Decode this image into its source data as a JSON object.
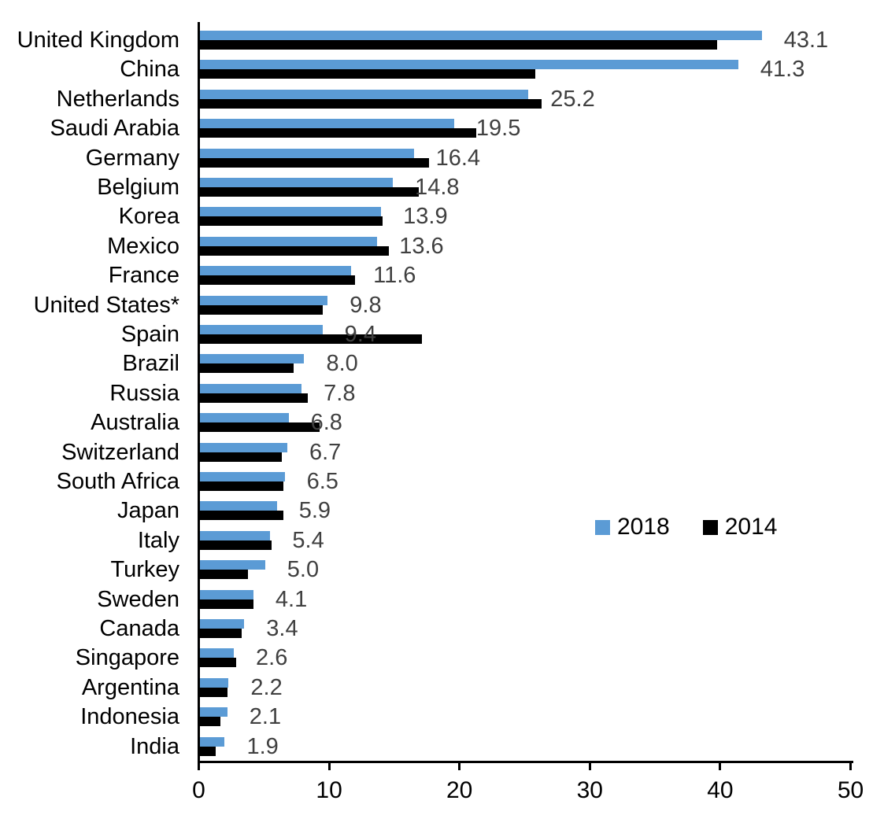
{
  "chart_data": {
    "type": "bar",
    "orientation": "horizontal",
    "title": "",
    "xlabel": "",
    "ylabel": "",
    "grid": false,
    "xlim": [
      0,
      50
    ],
    "x_ticks": [
      0,
      10,
      20,
      30,
      40,
      50
    ],
    "legend_position": "middle-right",
    "value_label_color": "#404040",
    "axis_color": "#000000",
    "categories": [
      "United Kingdom",
      "China",
      "Netherlands",
      "Saudi Arabia",
      "Germany",
      "Belgium",
      "Korea",
      "Mexico",
      "France",
      "United States*",
      "Spain",
      "Brazil",
      "Russia",
      "Australia",
      "Switzerland",
      "South Africa",
      "Japan",
      "Italy",
      "Turkey",
      "Sweden",
      "Canada",
      "Singapore",
      "Argentina",
      "Indonesia",
      "India"
    ],
    "series": [
      {
        "name": "2018",
        "color": "#5B9BD5",
        "data_labels_shown": true,
        "values": [
          43.1,
          41.3,
          25.2,
          19.5,
          16.4,
          14.8,
          13.9,
          13.6,
          11.6,
          9.8,
          9.4,
          8.0,
          7.8,
          6.8,
          6.7,
          6.5,
          5.9,
          5.4,
          5.0,
          4.1,
          3.4,
          2.6,
          2.2,
          2.1,
          1.9
        ]
      },
      {
        "name": "2014",
        "color": "#000000",
        "data_labels_shown": false,
        "values": [
          39.7,
          25.7,
          26.2,
          21.2,
          17.6,
          16.8,
          14.0,
          14.5,
          11.9,
          9.4,
          17.0,
          7.2,
          8.3,
          9.2,
          6.3,
          6.4,
          6.4,
          5.5,
          3.7,
          4.1,
          3.2,
          2.8,
          2.1,
          1.6,
          1.2
        ]
      }
    ]
  },
  "legend": {
    "item_2018": "2018",
    "item_2014": "2014"
  }
}
